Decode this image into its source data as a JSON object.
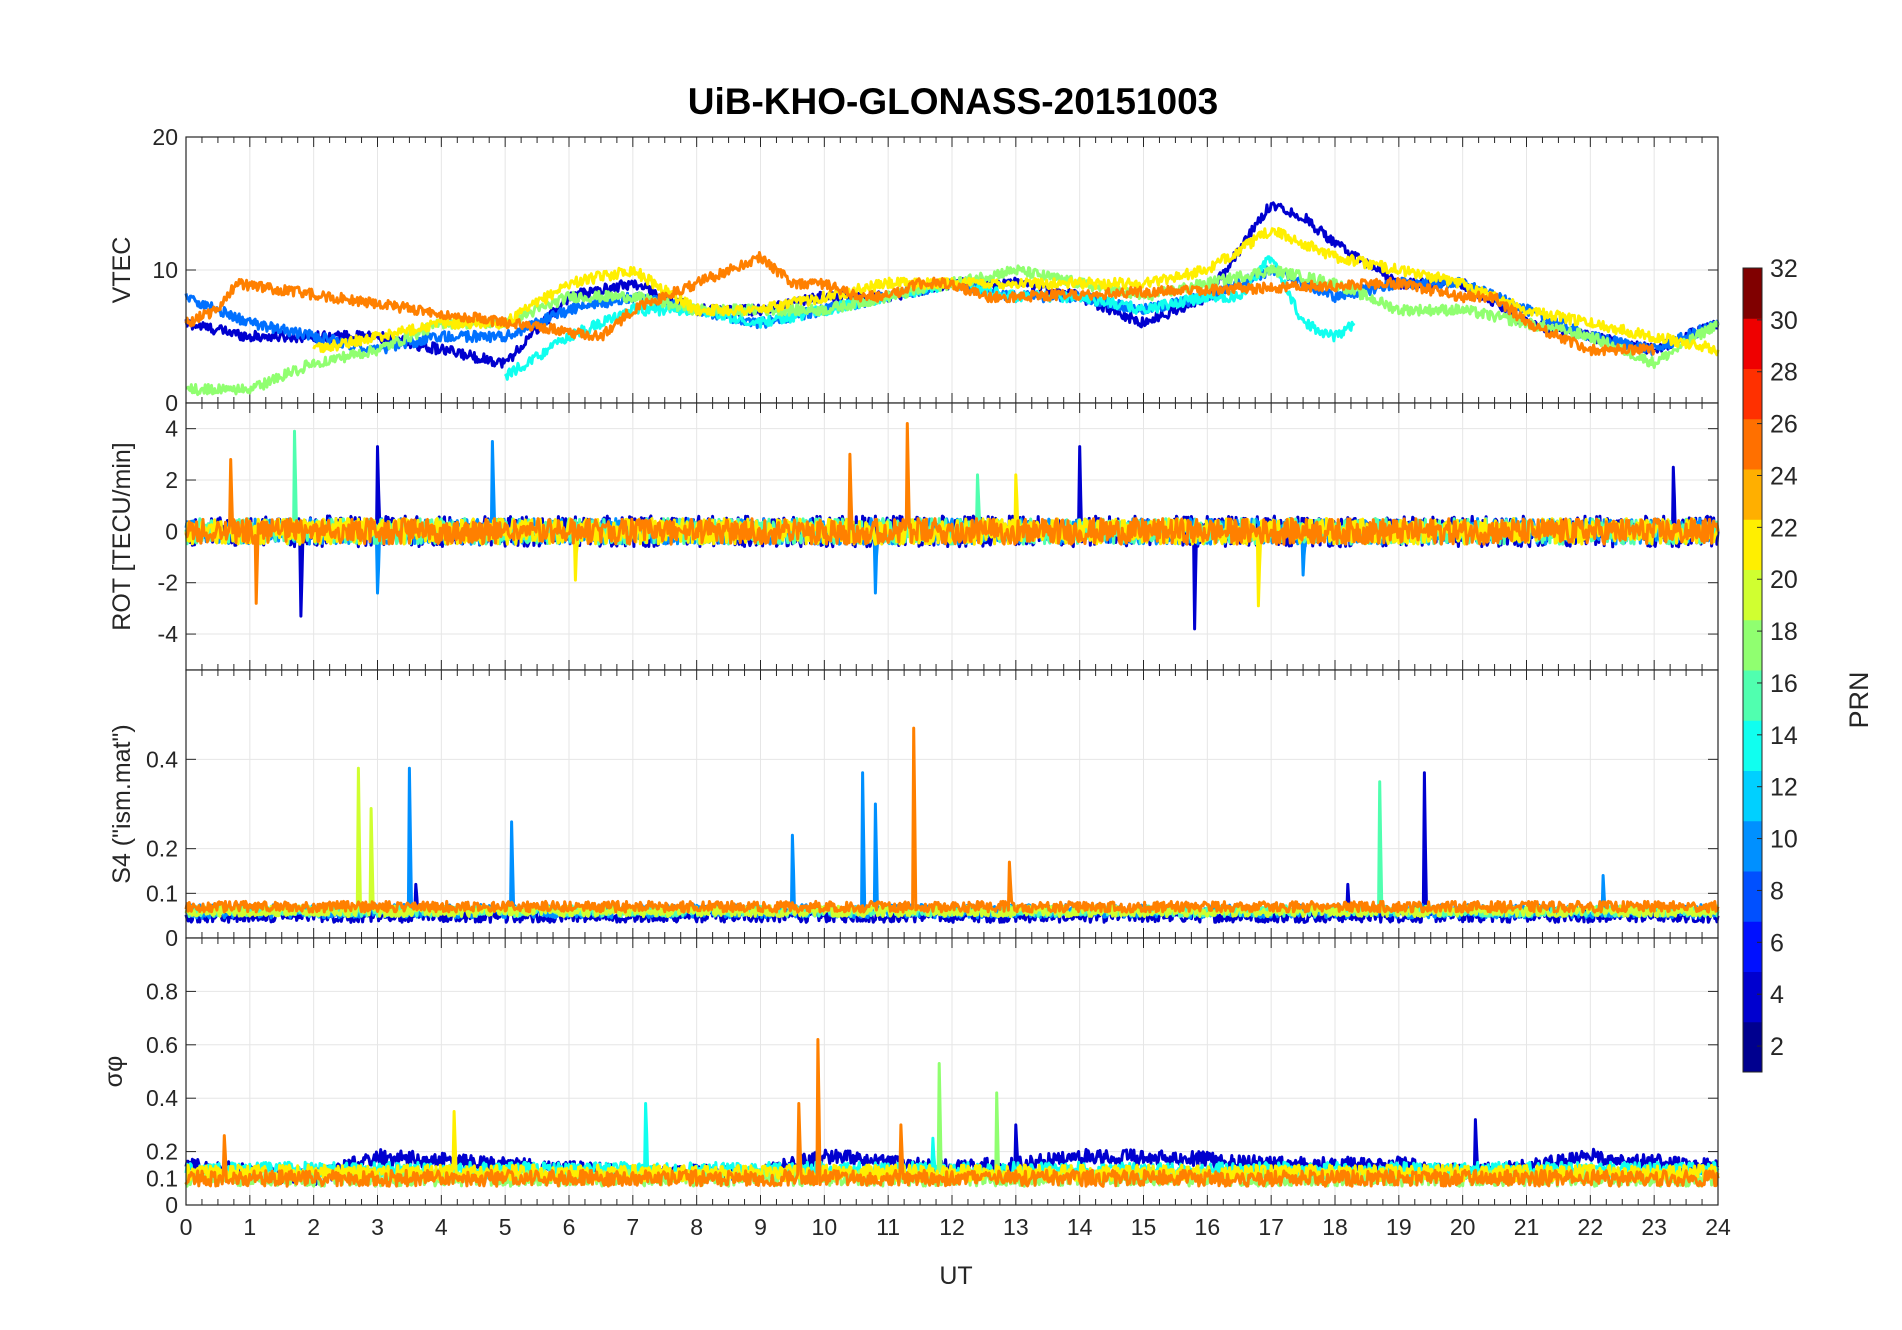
{
  "title": "UiB-KHO-GLONASS-20151003",
  "xlabel": "UT",
  "colorbar": {
    "label": "PRN",
    "min": 1,
    "max": 32,
    "ticks": [
      "2",
      "4",
      "6",
      "8",
      "10",
      "12",
      "14",
      "16",
      "18",
      "20",
      "22",
      "24",
      "26",
      "28",
      "30",
      "32"
    ],
    "colors": [
      "#00008f",
      "#0000cf",
      "#0010ff",
      "#0050ff",
      "#0090ff",
      "#00d0ff",
      "#10ffef",
      "#50ffaf",
      "#90ff70",
      "#d0ff30",
      "#ffef00",
      "#ffaf00",
      "#ff7000",
      "#ff3000",
      "#ef0000",
      "#800000"
    ]
  },
  "chart_data": [
    {
      "type": "line",
      "id": "vtec",
      "ylabel": "VTEC",
      "xlim": [
        0,
        24
      ],
      "ylim": [
        0,
        20
      ],
      "xticks": [
        "0",
        "1",
        "2",
        "3",
        "4",
        "5",
        "6",
        "7",
        "8",
        "9",
        "10",
        "11",
        "12",
        "13",
        "14",
        "15",
        "16",
        "17",
        "18",
        "19",
        "20",
        "21",
        "22",
        "23",
        "24"
      ],
      "yticks": [
        {
          "v": 0,
          "t": "0"
        },
        {
          "v": 10,
          "t": "10"
        },
        {
          "v": 20,
          "t": "20"
        }
      ],
      "grid": true,
      "series": [
        {
          "color": "#0000cf",
          "noise": 0.4,
          "x": [
            0,
            1,
            2,
            3,
            4,
            5,
            6,
            7,
            8,
            9,
            10,
            11,
            12,
            13,
            14,
            15,
            16,
            17,
            17.5,
            18,
            19,
            20,
            21,
            22,
            23,
            24
          ],
          "y": [
            6,
            5,
            5,
            5,
            4,
            3,
            8,
            9,
            7,
            7,
            8,
            8,
            9,
            9,
            8,
            6,
            8,
            15,
            14,
            12,
            9,
            9,
            6,
            5,
            4,
            6
          ]
        },
        {
          "color": "#0070ff",
          "noise": 0.4,
          "x": [
            0,
            1,
            2,
            3,
            4,
            5,
            6,
            7,
            8,
            9,
            10,
            11,
            12,
            13,
            14,
            15,
            16,
            17,
            18,
            19,
            20,
            21,
            22,
            23,
            24
          ],
          "y": [
            8,
            6,
            5,
            4,
            5,
            5,
            7,
            8,
            7,
            6,
            7,
            8,
            9,
            8,
            8,
            7,
            8,
            10,
            8,
            9,
            9,
            7,
            5,
            4,
            6
          ]
        },
        {
          "color": "#10ffef",
          "noise": 0.4,
          "x": [
            5,
            6,
            7,
            8,
            9,
            10,
            11,
            12,
            13,
            14,
            15,
            16,
            16.5,
            17,
            17.5,
            18,
            18.3
          ],
          "y": [
            2,
            5,
            7,
            7,
            6,
            7,
            8,
            9,
            8,
            8,
            7,
            8,
            8,
            11,
            6,
            5,
            6
          ]
        },
        {
          "color": "#90ff70",
          "noise": 0.4,
          "x": [
            0,
            1,
            2,
            3,
            4,
            5,
            6,
            7,
            8,
            9,
            10,
            11,
            12,
            13,
            14,
            15,
            16,
            17,
            18,
            19,
            20,
            21,
            22,
            23,
            24
          ],
          "y": [
            1,
            1,
            3,
            4,
            6,
            6,
            8,
            8,
            7,
            7,
            7,
            8,
            9,
            10,
            9,
            8,
            9,
            10,
            9,
            7,
            7,
            6,
            5,
            3,
            6
          ]
        },
        {
          "color": "#ffef00",
          "noise": 0.4,
          "x": [
            2,
            3,
            4,
            5,
            6,
            7,
            8,
            9,
            10,
            11,
            12,
            13,
            14,
            15,
            16,
            17,
            18,
            19,
            20,
            21,
            22,
            23,
            24
          ],
          "y": [
            4,
            5,
            6,
            6,
            9,
            10,
            7,
            7,
            8,
            9,
            9,
            9,
            9,
            9,
            10,
            13,
            11,
            10,
            9,
            7,
            6,
            5,
            4
          ]
        },
        {
          "color": "#ff8000",
          "noise": 0.4,
          "x": [
            0,
            0.5,
            0.8,
            6.5,
            7,
            8.5,
            9,
            9.5,
            10,
            10.5,
            11,
            11.5,
            12,
            12.5,
            13,
            19,
            20,
            20.5,
            21,
            22,
            23
          ],
          "y": [
            6,
            7,
            9,
            5,
            7,
            10,
            11,
            9,
            9,
            8,
            8,
            9,
            9,
            8,
            8,
            9,
            8,
            8,
            6,
            4,
            4
          ]
        }
      ]
    },
    {
      "type": "line",
      "id": "rot",
      "ylabel": "ROT [TECU/min]",
      "xlim": [
        0,
        24
      ],
      "ylim": [
        -5.4,
        5
      ],
      "yticks": [
        {
          "v": -4,
          "t": "-4"
        },
        {
          "v": -2,
          "t": "-2"
        },
        {
          "v": 0,
          "t": "0"
        },
        {
          "v": 2,
          "t": "2"
        },
        {
          "v": 4,
          "t": "4"
        }
      ],
      "grid": true,
      "series": [
        {
          "color": "#0000cf",
          "noise": 0.6,
          "x": [
            0,
            24
          ],
          "y": [
            0,
            0
          ],
          "spikes": [
            [
              1.8,
              -3.3
            ],
            [
              3,
              3.3
            ],
            [
              14,
              3.3
            ],
            [
              15.8,
              -3.8
            ],
            [
              23.3,
              2.5
            ]
          ]
        },
        {
          "color": "#0090ff",
          "noise": 0.5,
          "x": [
            0,
            24
          ],
          "y": [
            0,
            0
          ],
          "spikes": [
            [
              3,
              -2.4
            ],
            [
              4.8,
              3.5
            ],
            [
              10.8,
              -2.4
            ],
            [
              17.5,
              -1.7
            ]
          ]
        },
        {
          "color": "#50ffaf",
          "noise": 0.5,
          "x": [
            0,
            24
          ],
          "y": [
            0,
            0
          ],
          "spikes": [
            [
              1.7,
              3.9
            ],
            [
              12.4,
              2.2
            ]
          ]
        },
        {
          "color": "#ffef00",
          "noise": 0.5,
          "x": [
            0,
            24
          ],
          "y": [
            0,
            0
          ],
          "spikes": [
            [
              6.1,
              -1.9
            ],
            [
              16.8,
              -2.9
            ],
            [
              13,
              2.2
            ]
          ]
        },
        {
          "color": "#ff8000",
          "noise": 0.5,
          "x": [
            0,
            24
          ],
          "y": [
            0,
            0
          ],
          "spikes": [
            [
              1.1,
              -2.8
            ],
            [
              0.7,
              2.8
            ],
            [
              11.3,
              4.2
            ],
            [
              10.4,
              3
            ]
          ]
        }
      ]
    },
    {
      "type": "line",
      "id": "s4",
      "ylabel": "S4 (\"ism.mat\")",
      "xlim": [
        0,
        24
      ],
      "ylim": [
        0,
        0.6
      ],
      "yticks": [
        {
          "v": 0,
          "t": "0"
        },
        {
          "v": 0.1,
          "t": "0.1"
        },
        {
          "v": 0.2,
          "t": "0.2"
        },
        {
          "v": 0.4,
          "t": "0.4"
        }
      ],
      "grid": true,
      "series": [
        {
          "color": "#0000cf",
          "noise": 0.015,
          "x": [
            0,
            24
          ],
          "y": [
            0.05,
            0.05
          ],
          "spikes": [
            [
              19.4,
              0.37
            ],
            [
              3.6,
              0.12
            ],
            [
              18.2,
              0.12
            ]
          ]
        },
        {
          "color": "#0090ff",
          "noise": 0.015,
          "x": [
            0,
            24
          ],
          "y": [
            0.06,
            0.06
          ],
          "spikes": [
            [
              3.5,
              0.38
            ],
            [
              5.1,
              0.26
            ],
            [
              9.5,
              0.23
            ],
            [
              10.6,
              0.37
            ],
            [
              10.8,
              0.3
            ],
            [
              22.2,
              0.14
            ]
          ]
        },
        {
          "color": "#50ffaf",
          "noise": 0.012,
          "x": [
            0,
            24
          ],
          "y": [
            0.06,
            0.06
          ],
          "spikes": [
            [
              18.7,
              0.35
            ]
          ]
        },
        {
          "color": "#d0ff30",
          "noise": 0.012,
          "x": [
            0,
            24
          ],
          "y": [
            0.06,
            0.06
          ],
          "spikes": [
            [
              2.7,
              0.38
            ],
            [
              2.9,
              0.29
            ]
          ]
        },
        {
          "color": "#ff8000",
          "noise": 0.012,
          "x": [
            0,
            24
          ],
          "y": [
            0.07,
            0.07
          ],
          "spikes": [
            [
              11.4,
              0.47
            ],
            [
              12.9,
              0.17
            ]
          ]
        }
      ]
    },
    {
      "type": "line",
      "id": "sigma",
      "ylabel": "σφ",
      "xlim": [
        0,
        24
      ],
      "ylim": [
        0,
        1
      ],
      "yticks": [
        {
          "v": 0,
          "t": "0"
        },
        {
          "v": 0.1,
          "t": "0.1"
        },
        {
          "v": 0.2,
          "t": "0.2"
        },
        {
          "v": 0.4,
          "t": "0.4"
        },
        {
          "v": 0.6,
          "t": "0.6"
        },
        {
          "v": 0.8,
          "t": "0.8"
        }
      ],
      "grid": true,
      "series": [
        {
          "color": "#0000cf",
          "noise": 0.03,
          "x": [
            0,
            2,
            3,
            5,
            7,
            9,
            10,
            12,
            13,
            14,
            15,
            16,
            17,
            18,
            19,
            20,
            21,
            22,
            23,
            24
          ],
          "y": [
            0.15,
            0.1,
            0.18,
            0.15,
            0.12,
            0.12,
            0.18,
            0.14,
            0.15,
            0.18,
            0.18,
            0.17,
            0.15,
            0.15,
            0.15,
            0.12,
            0.14,
            0.18,
            0.16,
            0.14
          ],
          "spikes": [
            [
              13,
              0.3
            ],
            [
              20.2,
              0.32
            ]
          ]
        },
        {
          "color": "#10ffef",
          "noise": 0.03,
          "x": [
            0,
            24
          ],
          "y": [
            0.13,
            0.13
          ],
          "spikes": [
            [
              7.2,
              0.38
            ],
            [
              11.7,
              0.25
            ]
          ]
        },
        {
          "color": "#90ff70",
          "noise": 0.03,
          "x": [
            0,
            24
          ],
          "y": [
            0.1,
            0.1
          ],
          "spikes": [
            [
              11.8,
              0.53
            ],
            [
              12.7,
              0.42
            ]
          ]
        },
        {
          "color": "#ffef00",
          "noise": 0.03,
          "x": [
            0,
            24
          ],
          "y": [
            0.12,
            0.12
          ],
          "spikes": [
            [
              4.2,
              0.35
            ]
          ]
        },
        {
          "color": "#ff8000",
          "noise": 0.03,
          "x": [
            0,
            24
          ],
          "y": [
            0.1,
            0.1
          ],
          "spikes": [
            [
              9.9,
              0.62
            ],
            [
              9.6,
              0.38
            ],
            [
              11.2,
              0.3
            ],
            [
              0.6,
              0.26
            ]
          ]
        }
      ]
    }
  ]
}
